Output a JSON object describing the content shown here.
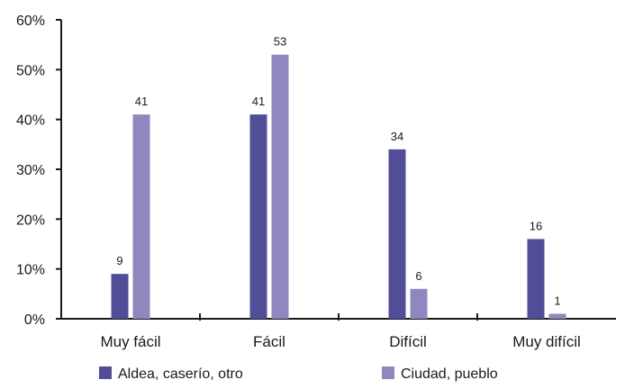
{
  "chart_data": {
    "type": "bar",
    "categories": [
      "Muy fácil",
      "Fácil",
      "Difícil",
      "Muy difícil"
    ],
    "series": [
      {
        "name": "Aldea, caserío, otro",
        "values": [
          9,
          41,
          34,
          16
        ],
        "color": "#524d97"
      },
      {
        "name": "Ciudad, pueblo",
        "values": [
          41,
          53,
          6,
          1
        ],
        "color": "#8f88bf"
      }
    ],
    "yticks": [
      "0%",
      "10%",
      "20%",
      "30%",
      "40%",
      "50%",
      "60%"
    ],
    "ylim": [
      0,
      60
    ],
    "title": "",
    "xlabel": "",
    "ylabel": "",
    "grid": false,
    "legend_position": "bottom"
  }
}
